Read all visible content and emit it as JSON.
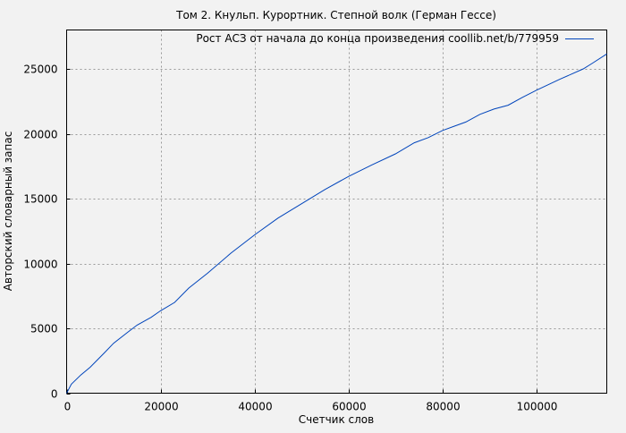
{
  "chart_data": {
    "type": "line",
    "title": "Том 2. Кнульп. Курортник. Степной волк (Герман Гессе)",
    "xlabel": "Счетчик слов",
    "ylabel": "Авторский словарный запас",
    "xlim": [
      0,
      115000
    ],
    "ylim": [
      0,
      28000
    ],
    "xticks": [
      0,
      20000,
      40000,
      60000,
      80000,
      100000
    ],
    "yticks": [
      0,
      5000,
      10000,
      15000,
      20000,
      25000
    ],
    "grid": true,
    "legend_position": "top-right",
    "series": [
      {
        "name": "Рост АСЗ от начала до конца произведения coollib.net/b/779959",
        "color": "#0044bb",
        "x": [
          0,
          1000,
          3000,
          5000,
          8000,
          10000,
          13000,
          15000,
          18000,
          20000,
          23000,
          26000,
          30000,
          35000,
          40000,
          45000,
          50000,
          55000,
          60000,
          65000,
          70000,
          74000,
          77000,
          80000,
          85000,
          88000,
          91000,
          94000,
          97000,
          100000,
          105000,
          110000,
          112000,
          115000
        ],
        "y": [
          0,
          700,
          1400,
          2000,
          3100,
          3850,
          4700,
          5250,
          5850,
          6350,
          7000,
          8100,
          9250,
          10800,
          12200,
          13500,
          14600,
          15700,
          16700,
          17600,
          18450,
          19300,
          19700,
          20250,
          20900,
          21500,
          21900,
          22200,
          22800,
          23350,
          24200,
          25000,
          25450,
          26150
        ]
      }
    ]
  }
}
